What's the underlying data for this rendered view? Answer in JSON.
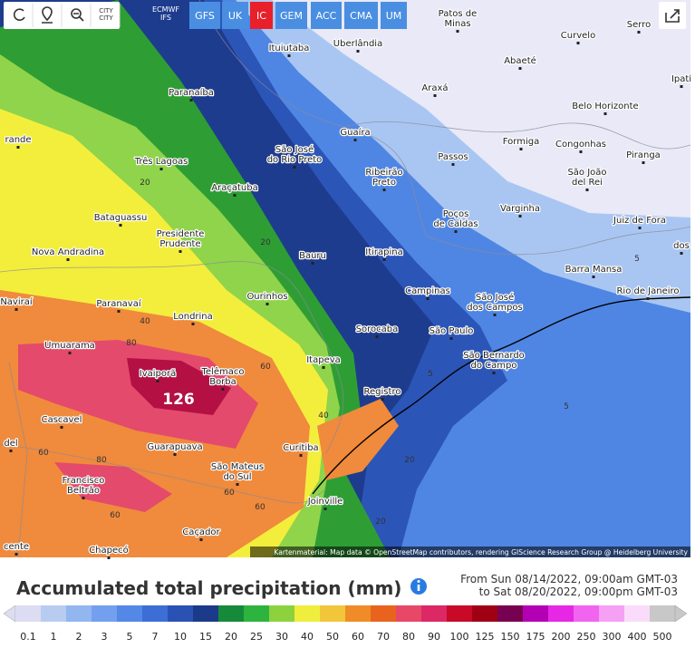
{
  "toolbar": {
    "city_button": [
      "CITY",
      "CITY"
    ]
  },
  "models": {
    "header": [
      "ECMWF",
      "IFS"
    ],
    "buttons": [
      "GFS",
      "UK",
      "IC",
      "GEM",
      "ACC",
      "CMA",
      "UM"
    ],
    "active": "IC"
  },
  "cities": [
    [
      "Patos de",
      "Minas"
    ],
    [
      "Serro"
    ],
    [
      "Curvelo"
    ],
    [
      "Ituiutaba"
    ],
    [
      "Uberlândia"
    ],
    [
      "Abaeté"
    ],
    [
      "Ipati"
    ],
    [
      "Paranaíba"
    ],
    [
      "Araxá"
    ],
    [
      "Belo Horizonte"
    ],
    [
      "Guaíra"
    ],
    [
      "Formiga"
    ],
    [
      "Congonhas"
    ],
    [
      "rande"
    ],
    [
      "São José",
      "do Rio Preto"
    ],
    [
      "Passos"
    ],
    [
      "Piranga"
    ],
    [
      "Três Lagoas"
    ],
    [
      "Ribeirão",
      "Preto"
    ],
    [
      "São João",
      "del Rei"
    ],
    [
      "Araçatuba"
    ],
    [
      "Varginha"
    ],
    [
      "Bataguassu"
    ],
    [
      "Poços",
      "de Caldas"
    ],
    [
      "Juiz de Fora"
    ],
    [
      "Presidente",
      "Prudente"
    ],
    [
      "Nova Andradina"
    ],
    [
      "Itirapina"
    ],
    [
      "Bauru"
    ],
    [
      "dos"
    ],
    [
      "Barra Mansa"
    ],
    [
      "Campinas"
    ],
    [
      "São José",
      "dos Campos"
    ],
    [
      "Rio de Janeiro"
    ],
    [
      "Paranavaí"
    ],
    [
      "Naviraí"
    ],
    [
      "Ourinhos"
    ],
    [
      "Londrina"
    ],
    [
      "Sorocaba"
    ],
    [
      "São Paulo"
    ],
    [
      "São Bernardo",
      "do Campo"
    ],
    [
      "Umuarama"
    ],
    [
      "Itapeva"
    ],
    [
      "Ivaiporã"
    ],
    [
      "Telêmaco",
      "Borba"
    ],
    [
      "Registro"
    ],
    [
      "Cascavel"
    ],
    [
      "Guarapuava"
    ],
    [
      "Curitiba"
    ],
    [
      "del"
    ],
    [
      "São Mateus",
      "do Sul"
    ],
    [
      "Francisco",
      "Beltrão"
    ],
    [
      "Joinville"
    ],
    [
      "Caçador"
    ],
    [
      "Chapecó"
    ],
    [
      "cente"
    ]
  ],
  "contour_labels": [
    20,
    20,
    40,
    80,
    60,
    40,
    60,
    80,
    60,
    60,
    60,
    20,
    20,
    5,
    5,
    5
  ],
  "max_label": 126,
  "attribution": "Kartenmaterial: Map data © OpenStreetMap contributors, rendering GIScience Research Group @ Heidelberg University",
  "title": "Accumulated total precipitation (mm)",
  "period": [
    "From Sun 08/14/2022, 09:00am GMT-03",
    "to Sat 08/20/2022, 09:00pm GMT-03"
  ],
  "legend": {
    "values": [
      0.1,
      1,
      2,
      3,
      5,
      7,
      10,
      15,
      20,
      25,
      30,
      40,
      50,
      60,
      70,
      80,
      90,
      100,
      125,
      150,
      175,
      200,
      250,
      300,
      400,
      500
    ],
    "colors": [
      "#dcdcf2",
      "#b8ccf2",
      "#92b6f0",
      "#72a0ee",
      "#5488e6",
      "#3c6ed6",
      "#2a52b4",
      "#1c3a8a",
      "#168a3a",
      "#2cb43e",
      "#8cd23c",
      "#f0ee3c",
      "#f2c63a",
      "#f08c28",
      "#e8641e",
      "#e84868",
      "#dc2864",
      "#c80a28",
      "#a00014",
      "#780050",
      "#b400b4",
      "#e628e6",
      "#f064f0",
      "#f5a0f5",
      "#fadcfa",
      "#c8c8c8"
    ]
  }
}
